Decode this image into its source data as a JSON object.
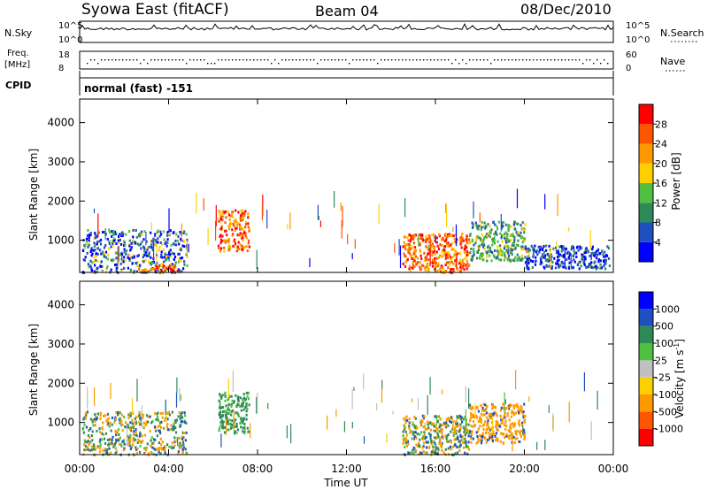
{
  "header": {
    "title": "Syowa East (fitACF)",
    "beam": "Beam 04",
    "date": "08/Dec/2010"
  },
  "noise_panel": {
    "left_label": "N.Sky",
    "right_label": "N.Search",
    "left_ticks": [
      "10^5",
      "10^0"
    ],
    "right_ticks": [
      "10^5",
      "10^0"
    ]
  },
  "freq_panel": {
    "left_label_1": "Freq.",
    "left_label_2": "[MHz]",
    "right_label": "Nave",
    "left_ticks": [
      "18",
      "8"
    ],
    "right_ticks": [
      "60",
      "0"
    ]
  },
  "cpid_panel": {
    "label": "CPID",
    "text": "normal (fast) -151"
  },
  "colors": {
    "power_scale": [
      "#0000ff",
      "#2050c0",
      "#2e8b57",
      "#50c040",
      "#ffd000",
      "#ff9900",
      "#ff5500",
      "#ff0000"
    ],
    "velocity_scale": [
      "#ff0000",
      "#ff5500",
      "#ff9900",
      "#ffd000",
      "#c0c0c0",
      "#50c040",
      "#2e8b57",
      "#2050c0",
      "#0000ff"
    ]
  },
  "chart_data": [
    {
      "type": "heatmap",
      "name": "power",
      "ylabel": "Slant Range [km]",
      "xlabel": "Time UT",
      "yticks": [
        "1000",
        "2000",
        "3000",
        "4000"
      ],
      "ylim": [
        180,
        4600
      ],
      "xlim_hours": [
        0,
        24
      ],
      "colorbar": {
        "label": "Power [dB]",
        "ticks": [
          "4",
          "8",
          "12",
          "16",
          "20",
          "24",
          "28"
        ]
      },
      "echo_regions": [
        {
          "t_start": 0.1,
          "t_end": 4.8,
          "r_min": 200,
          "r_max": 1300,
          "level": "mixed-low"
        },
        {
          "t_start": 2.6,
          "t_end": 4.4,
          "r_min": 200,
          "r_max": 400,
          "level": "high"
        },
        {
          "t_start": 6.2,
          "t_end": 7.6,
          "r_min": 750,
          "r_max": 1800,
          "level": "high"
        },
        {
          "t_start": 14.5,
          "t_end": 17.5,
          "r_min": 200,
          "r_max": 1200,
          "level": "high"
        },
        {
          "t_start": 17.5,
          "t_end": 20.0,
          "r_min": 500,
          "r_max": 1500,
          "level": "mid"
        },
        {
          "t_start": 20.0,
          "t_end": 23.8,
          "r_min": 300,
          "r_max": 900,
          "level": "low"
        }
      ]
    },
    {
      "type": "heatmap",
      "name": "velocity",
      "ylabel": "Slant Range [km]",
      "xlabel": "Time UT",
      "yticks": [
        "1000",
        "2000",
        "3000",
        "4000"
      ],
      "ylim": [
        180,
        4600
      ],
      "colorbar": {
        "label": "Velocity [m s^-1]",
        "ticks": [
          "-1000",
          "-500",
          "-100",
          "-25",
          "25",
          "100",
          "500",
          "1000"
        ]
      },
      "xticks": [
        "00:00",
        "04:00",
        "08:00",
        "12:00",
        "16:00",
        "20:00",
        "00:00"
      ],
      "echo_regions": [
        {
          "t_start": 0.1,
          "t_end": 4.8,
          "r_min": 200,
          "r_max": 1300,
          "level": "mixed"
        },
        {
          "t_start": 6.2,
          "t_end": 7.6,
          "r_min": 750,
          "r_max": 1800,
          "level": "away-strong"
        },
        {
          "t_start": 14.5,
          "t_end": 17.5,
          "r_min": 200,
          "r_max": 1200,
          "level": "mixed"
        },
        {
          "t_start": 17.5,
          "t_end": 20.0,
          "r_min": 500,
          "r_max": 1500,
          "level": "toward"
        }
      ]
    }
  ]
}
